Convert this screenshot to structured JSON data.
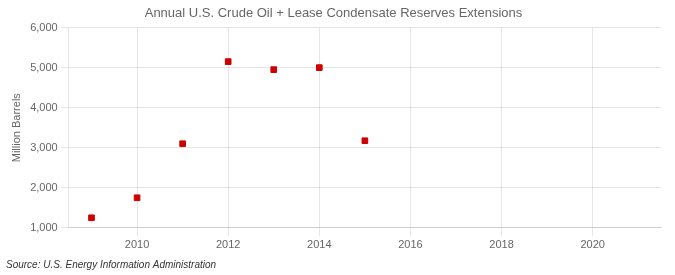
{
  "chart_data": {
    "type": "scatter",
    "title": "Annual U.S. Crude Oil + Lease Condensate Reserves Extensions",
    "y_label": "Million Barrels",
    "annotations": [
      "Source: U.S. Energy Information Administration"
    ],
    "x": [
      2009,
      2010,
      2011,
      2012,
      2013,
      2014,
      2015
    ],
    "values": [
      1250,
      1750,
      3100,
      5150,
      4950,
      5000,
      3175
    ],
    "color": "#cc0000",
    "marker": "square",
    "xlim": [
      2008.5,
      2021.5
    ],
    "xticks": [
      2010,
      2012,
      2014,
      2016,
      2018,
      2020
    ],
    "ylim": [
      1000,
      6000
    ],
    "yticks": [
      {
        "value": 1000,
        "label": "1,000"
      },
      {
        "value": 2000,
        "label": "2,000"
      },
      {
        "value": 3000,
        "label": "3,000"
      },
      {
        "value": 4000,
        "label": "4,000"
      },
      {
        "value": 5000,
        "label": "5,000"
      },
      {
        "value": 6000,
        "label": "6,000"
      }
    ],
    "grid": true
  }
}
